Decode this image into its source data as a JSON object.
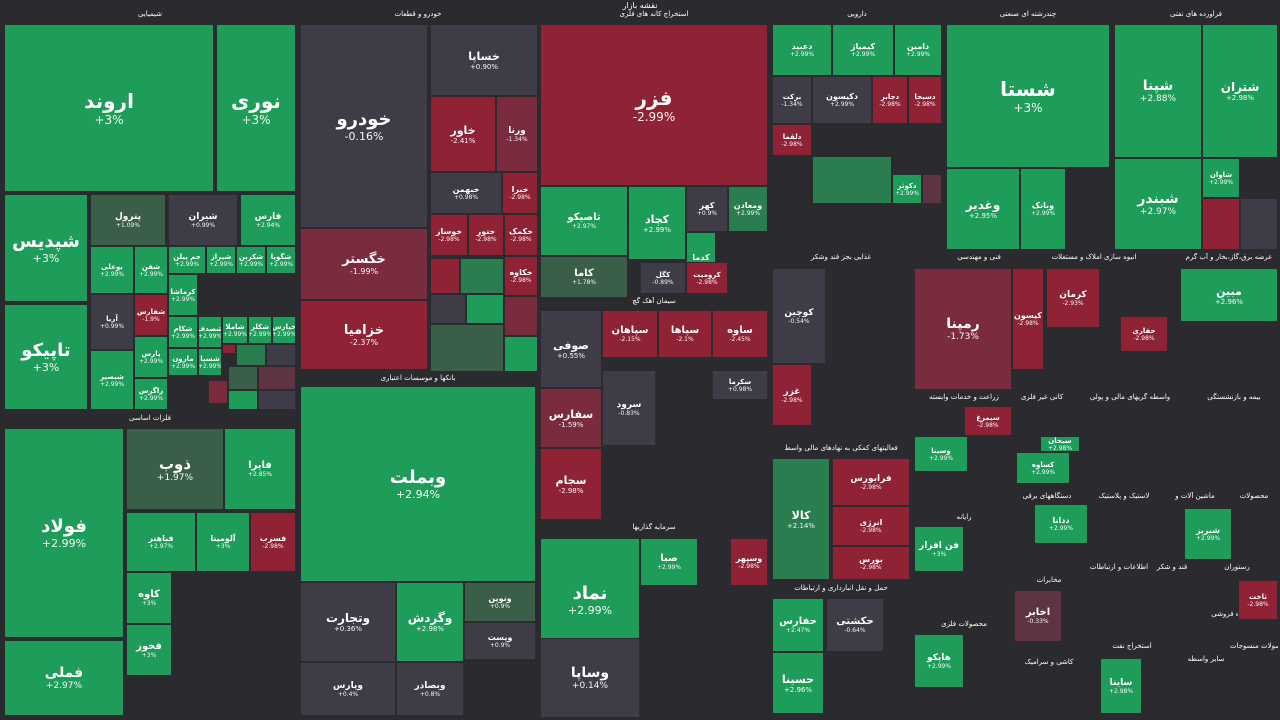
{
  "page": {
    "title": "نقشه بازار"
  },
  "colors": {
    "g1": "#1e9c5a",
    "g2": "#2a7d4f",
    "g3": "#3a5e48",
    "n": "#3f3b47",
    "r1": "#8f2235",
    "r2": "#7a2b3e",
    "r3": "#5e3342"
  },
  "sectors": [
    {
      "label": "شیمیایی"
    },
    {
      "label": "خودرو و قطعات"
    },
    {
      "label": "استخراج کانه های فلزی"
    },
    {
      "label": "دارویی"
    },
    {
      "label": "چندرشته ای صنعتی"
    },
    {
      "label": "فراورده های نفتی"
    },
    {
      "label": "فلزات اساسی"
    },
    {
      "label": "بانکها و موسسات اعتباری"
    },
    {
      "label": "سیمان آهک گچ"
    },
    {
      "label": "سرمایه گذاریها"
    },
    {
      "label": "غذایی بجز قند وشکر"
    },
    {
      "label": "فنی و مهندسی"
    },
    {
      "label": "انبوه سازی املاک و مستغلات"
    },
    {
      "label": "عرضه برق،گاز،بخار و آب گرم"
    },
    {
      "label": "زراعت و خدمات وابسته"
    },
    {
      "label": "کانی غیر فلزی"
    },
    {
      "label": "واسطه گریهای مالی و پولی"
    },
    {
      "label": "بیمه و بازنشستگی"
    },
    {
      "label": "فعالیتهای کمکی به نهادهای مالی واسط"
    },
    {
      "label": "دستگاههای برقی"
    },
    {
      "label": "لاستیک و پلاستیک"
    },
    {
      "label": "ماشین آلات و"
    },
    {
      "label": "محصولات"
    },
    {
      "label": "رایانه"
    },
    {
      "label": "اطلاعات و ارتباطات"
    },
    {
      "label": "قند و شکر"
    },
    {
      "label": "رستوران"
    },
    {
      "label": "مخابرات"
    },
    {
      "label": "خرده فروشی"
    },
    {
      "label": "حمل و نقل انبارداری و ارتباطات"
    },
    {
      "label": "محصولات فلزی"
    },
    {
      "label": "کاشی و سرامیک"
    },
    {
      "label": "استخراج نفت"
    },
    {
      "label": "سایر واسطه"
    },
    {
      "label": "محصولات منسوجات"
    }
  ],
  "tiles": [
    {
      "name": "اروند",
      "pct": "+3%",
      "c": "g1"
    },
    {
      "name": "نوری",
      "pct": "+3%",
      "c": "g1"
    },
    {
      "name": "شپدیس",
      "pct": "+3%",
      "c": "g1"
    },
    {
      "name": "تاپیکو",
      "pct": "+3%",
      "c": "g1"
    },
    {
      "name": "پترول",
      "pct": "+1.09%",
      "c": "g3"
    },
    {
      "name": "شیران",
      "pct": "+0.99%",
      "c": "n"
    },
    {
      "name": "فارس",
      "pct": "+2.94%",
      "c": "g1"
    },
    {
      "name": "بوعلی",
      "pct": "+2.99%",
      "c": "g1"
    },
    {
      "name": "شفن",
      "pct": "+2.99%",
      "c": "g1"
    },
    {
      "name": "جم پیلن",
      "pct": "+2.99%",
      "c": "g1"
    },
    {
      "name": "شیراز",
      "pct": "+2.99%",
      "c": "g1"
    },
    {
      "name": "شکربن",
      "pct": "+2.99%",
      "c": "g1"
    },
    {
      "name": "شگویا",
      "pct": "+2.99%",
      "c": "g1"
    },
    {
      "name": "آریا",
      "pct": "+0.99%",
      "c": "n"
    },
    {
      "name": "شفارس",
      "pct": "-1.9%",
      "c": "r1"
    },
    {
      "name": "کرماشا",
      "pct": "+2.99%",
      "c": "g1"
    },
    {
      "name": "شکام",
      "pct": "+2.99%",
      "c": "g1"
    },
    {
      "name": "پارس",
      "pct": "+2.99%",
      "c": "g1"
    },
    {
      "name": "مارون",
      "pct": "+2.99%",
      "c": "g1"
    },
    {
      "name": "شصدف",
      "pct": "+2.99%",
      "c": "g1"
    },
    {
      "name": "شبصیر",
      "pct": "+2.99%",
      "c": "g1"
    },
    {
      "name": "زاگرس",
      "pct": "+2.99%",
      "c": "g1"
    },
    {
      "name": "شسپا",
      "pct": "+2.99%",
      "c": "g1"
    },
    {
      "name": "شاملا",
      "pct": "+2.99%",
      "c": "g1"
    },
    {
      "name": "شکلر",
      "pct": "+2.99%",
      "c": "g1"
    },
    {
      "name": "خپارس",
      "pct": "+2.99%",
      "c": "g1"
    },
    {
      "name": "خودرو",
      "pct": "-0.16%",
      "c": "n"
    },
    {
      "name": "خساپا",
      "pct": "+0.90%",
      "c": "n"
    },
    {
      "name": "خاور",
      "pct": "-2.41%",
      "c": "r1"
    },
    {
      "name": "ورنا",
      "pct": "-1.34%",
      "c": "r2"
    },
    {
      "name": "خبهمن",
      "pct": "+0.98%",
      "c": "n"
    },
    {
      "name": "خبرا",
      "pct": "-2.98%",
      "c": "r1"
    },
    {
      "name": "خگستر",
      "pct": "-1.99%",
      "c": "r2"
    },
    {
      "name": "خوساز",
      "pct": "-2.98%",
      "c": "r1"
    },
    {
      "name": "ختور",
      "pct": "-2.98%",
      "c": "r1"
    },
    {
      "name": "خزامیا",
      "pct": "-2.37%",
      "c": "r1"
    },
    {
      "name": "خکمک",
      "pct": "-2.98%",
      "c": "r1"
    },
    {
      "name": "خکاوه",
      "pct": "-2.98%",
      "c": "r1"
    },
    {
      "name": "فزر",
      "pct": "-2.99%",
      "c": "r1"
    },
    {
      "name": "تاصیکو",
      "pct": "+2.97%",
      "c": "g1"
    },
    {
      "name": "کچاد",
      "pct": "+2.99%",
      "c": "g1"
    },
    {
      "name": "کهر",
      "pct": "+0.9%",
      "c": "n"
    },
    {
      "name": "ومعادن",
      "pct": "+2.99%",
      "c": "g2"
    },
    {
      "name": "کاما",
      "pct": "+1.78%",
      "c": "g3"
    },
    {
      "name": "کدما",
      "pct": "+3%",
      "c": "g1"
    },
    {
      "name": "کگل",
      "pct": "-0.89%",
      "c": "n"
    },
    {
      "name": "کرومیت",
      "pct": "-2.98%",
      "c": "r1"
    },
    {
      "name": "دعبید",
      "pct": "+2.99%",
      "c": "g1"
    },
    {
      "name": "کیمیاژ",
      "pct": "+2.99%",
      "c": "g1"
    },
    {
      "name": "دامین",
      "pct": "+2.99%",
      "c": "g1"
    },
    {
      "name": "برکت",
      "pct": "-1.34%",
      "c": "n"
    },
    {
      "name": "دکیسون",
      "pct": "+2.99%",
      "c": "n"
    },
    {
      "name": "دجابر",
      "pct": "-2.98%",
      "c": "r1"
    },
    {
      "name": "دسبحا",
      "pct": "-2.98%",
      "c": "r1"
    },
    {
      "name": "دلقما",
      "pct": "-2.98%",
      "c": "r1"
    },
    {
      "name": "دکوثر",
      "pct": "+2.99%",
      "c": "g1"
    },
    {
      "name": "شستا",
      "pct": "+3%",
      "c": "g1"
    },
    {
      "name": "وغدیر",
      "pct": "+2.95%",
      "c": "g1"
    },
    {
      "name": "وبانک",
      "pct": "+2.99%",
      "c": "g1"
    },
    {
      "name": "شپنا",
      "pct": "+2.88%",
      "c": "g1"
    },
    {
      "name": "شتران",
      "pct": "+2.98%",
      "c": "g1"
    },
    {
      "name": "شبندر",
      "pct": "+2.97%",
      "c": "g1"
    },
    {
      "name": "شاوان",
      "pct": "+2.99%",
      "c": "g1"
    },
    {
      "name": "فولاد",
      "pct": "+2.99%",
      "c": "g1"
    },
    {
      "name": "فملی",
      "pct": "+2.97%",
      "c": "g1"
    },
    {
      "name": "ذوب",
      "pct": "+1.97%",
      "c": "g3"
    },
    {
      "name": "فایرا",
      "pct": "+2.85%",
      "c": "g1"
    },
    {
      "name": "فباهنر",
      "pct": "+2.97%",
      "c": "g1"
    },
    {
      "name": "آلومینا",
      "pct": "+3%",
      "c": "g1"
    },
    {
      "name": "فسرب",
      "pct": "-2.98%",
      "c": "r1"
    },
    {
      "name": "کاوه",
      "pct": "+3%",
      "c": "g1"
    },
    {
      "name": "فخوز",
      "pct": "+3%",
      "c": "g1"
    },
    {
      "name": "وبملت",
      "pct": "+2.94%",
      "c": "g1"
    },
    {
      "name": "وتجارت",
      "pct": "+0.36%",
      "c": "n"
    },
    {
      "name": "وپارس",
      "pct": "+0.4%",
      "c": "n"
    },
    {
      "name": "وگردش",
      "pct": "+2.98%",
      "c": "g1"
    },
    {
      "name": "وبصادر",
      "pct": "+0.8%",
      "c": "n"
    },
    {
      "name": "ونوین",
      "pct": "+0.9%",
      "c": "g3"
    },
    {
      "name": "وپست",
      "pct": "+0.9%",
      "c": "n"
    },
    {
      "name": "صوفی",
      "pct": "+0.55%",
      "c": "n"
    },
    {
      "name": "سپاهان",
      "pct": "-2.15%",
      "c": "r1"
    },
    {
      "name": "سپاها",
      "pct": "-2.1%",
      "c": "r1"
    },
    {
      "name": "ساوه",
      "pct": "-2.45%",
      "c": "r1"
    },
    {
      "name": "سفارس",
      "pct": "-1.59%",
      "c": "r2"
    },
    {
      "name": "سرود",
      "pct": "-0.83%",
      "c": "n"
    },
    {
      "name": "سجام",
      "pct": "-2.98%",
      "c": "r1"
    },
    {
      "name": "سکرما",
      "pct": "+0.98%",
      "c": "n"
    },
    {
      "name": "نماد",
      "pct": "+2.99%",
      "c": "g1"
    },
    {
      "name": "وساپا",
      "pct": "+0.14%",
      "c": "n"
    },
    {
      "name": "صبا",
      "pct": "+2.99%",
      "c": "g1"
    },
    {
      "name": "وسپهر",
      "pct": "-2.98%",
      "c": "r1"
    },
    {
      "name": "کوچین",
      "pct": "-0.54%",
      "c": "n"
    },
    {
      "name": "غزر",
      "pct": "-2.98%",
      "c": "r1"
    },
    {
      "name": "رمپنا",
      "pct": "-1.73%",
      "c": "r2"
    },
    {
      "name": "کیسون",
      "pct": "-2.98%",
      "c": "r1"
    },
    {
      "name": "کرمان",
      "pct": "-2.93%",
      "c": "r1"
    },
    {
      "name": "مبین",
      "pct": "+2.96%",
      "c": "g1"
    },
    {
      "name": "کالا",
      "pct": "+2.14%",
      "c": "g2"
    },
    {
      "name": "فرابورس",
      "pct": "-2.98%",
      "c": "r1"
    },
    {
      "name": "انرژی",
      "pct": "-2.98%",
      "c": "r1"
    },
    {
      "name": "بورس",
      "pct": "-2.98%",
      "c": "r1"
    },
    {
      "name": "فن افزار",
      "pct": "+3%",
      "c": "g1"
    },
    {
      "name": "حفارس",
      "pct": "+2.47%",
      "c": "g1"
    },
    {
      "name": "حکشتی",
      "pct": "-0.64%",
      "c": "n"
    },
    {
      "name": "حسینا",
      "pct": "+2.96%",
      "c": "g1"
    },
    {
      "name": "اخابر",
      "pct": "-0.33%",
      "c": "r3"
    },
    {
      "name": "هاپکو",
      "pct": "+2.99%",
      "c": "g1"
    },
    {
      "name": "ددانا",
      "pct": "+2.99%",
      "c": "g1"
    },
    {
      "name": "شبریز",
      "pct": "+2.99%",
      "c": "g1"
    },
    {
      "name": "سیمرغ",
      "pct": "-2.98%",
      "c": "r1"
    },
    {
      "name": "وسینا",
      "pct": "+2.99%",
      "c": "g1"
    },
    {
      "name": "کساوه",
      "pct": "+2.99%",
      "c": "g1"
    },
    {
      "name": "سبحان",
      "pct": "+2.98%",
      "c": "g1"
    },
    {
      "name": "ساینا",
      "pct": "+2.98%",
      "c": "g1"
    },
    {
      "name": "حفاری",
      "pct": "-2.98%",
      "c": "r1"
    },
    {
      "name": "ثاخت",
      "pct": "-2.98%",
      "c": "r1"
    },
    {
      "name": "کیمیاتک",
      "pct": "+2.99%",
      "c": "g1"
    }
  ],
  "unlabeled_tiles": [
    {
      "c": "g1"
    },
    {
      "c": "r1"
    },
    {
      "c": "g2"
    },
    {
      "c": "n"
    },
    {
      "c": "r2"
    },
    {
      "c": "g3"
    },
    {
      "c": "r3"
    },
    {
      "c": "g1"
    },
    {
      "c": "n"
    },
    {
      "c": "r1"
    },
    {
      "c": "g2"
    },
    {
      "c": "n"
    },
    {
      "c": "g1"
    },
    {
      "c": "r2"
    },
    {
      "c": "g3"
    },
    {
      "c": "g1"
    },
    {
      "c": "r1"
    },
    {
      "c": "n"
    },
    {
      "c": "g2"
    },
    {
      "c": "r3"
    }
  ]
}
